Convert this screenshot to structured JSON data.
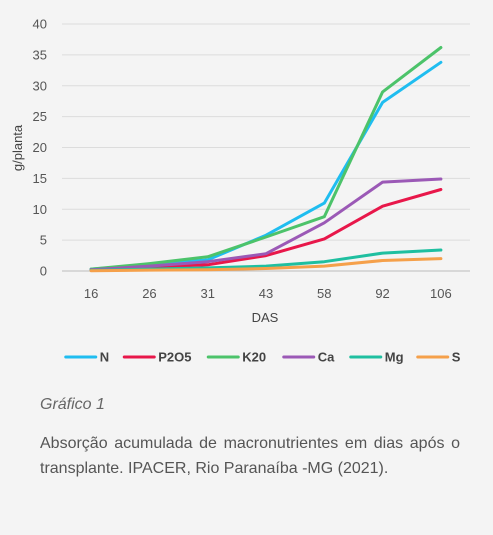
{
  "chart_data": {
    "type": "line",
    "xlabel": "DAS",
    "ylabel": "g/planta",
    "categories": [
      "16",
      "26",
      "31",
      "43",
      "58",
      "92",
      "106"
    ],
    "yticks": [
      0,
      5,
      10,
      15,
      20,
      25,
      30,
      35,
      40
    ],
    "ylim": [
      0,
      40
    ],
    "grid": true,
    "legend_position": "bottom",
    "series": [
      {
        "name": "N",
        "color": "#1fbdf0",
        "values": [
          0.3,
          1.0,
          1.8,
          5.8,
          11.0,
          27.3,
          33.8
        ]
      },
      {
        "name": "P2O5",
        "color": "#e8174a",
        "values": [
          0.2,
          0.6,
          1.0,
          2.5,
          5.2,
          10.5,
          13.2
        ]
      },
      {
        "name": "K20",
        "color": "#4cc36a",
        "values": [
          0.3,
          1.2,
          2.3,
          5.5,
          8.8,
          29.0,
          36.2
        ]
      },
      {
        "name": "Ca",
        "color": "#9b59b6",
        "values": [
          0.2,
          0.8,
          1.5,
          2.8,
          7.8,
          14.4,
          14.9
        ]
      },
      {
        "name": "Mg",
        "color": "#1fbfa0",
        "values": [
          0.1,
          0.3,
          0.5,
          0.8,
          1.5,
          2.9,
          3.4
        ]
      },
      {
        "name": "S",
        "color": "#f5a04a",
        "values": [
          0.05,
          0.15,
          0.2,
          0.4,
          0.8,
          1.7,
          2.0
        ]
      }
    ]
  },
  "caption": {
    "title": "Gráfico 1",
    "text": "Absorção acumulada de macronutrientes em dias após o transplante. IPACER, Rio Paranaíba -MG (2021)."
  }
}
